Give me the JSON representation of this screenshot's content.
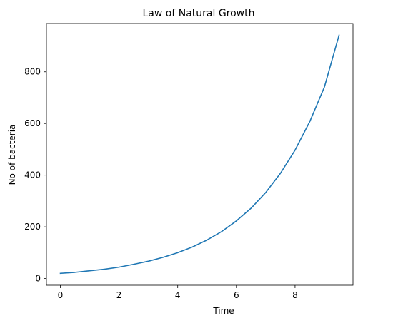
{
  "chart_data": {
    "type": "line",
    "title": "Law of Natural Growth",
    "xlabel": "Time",
    "ylabel": "No of bacteria",
    "xlim": [
      -0.475,
      9.975
    ],
    "ylim": [
      -26,
      987
    ],
    "xticks": [
      0,
      2,
      4,
      6,
      8
    ],
    "yticks": [
      0,
      200,
      400,
      600,
      800
    ],
    "grid": false,
    "legend": "none",
    "series": [
      {
        "color": "#1f77b4",
        "x": [
          0,
          0.5,
          1,
          1.5,
          2,
          2.5,
          3,
          3.5,
          4,
          4.5,
          5,
          5.5,
          6,
          6.5,
          7,
          7.5,
          8,
          8.5,
          9,
          9.5
        ],
        "y": [
          20,
          24,
          30,
          36,
          44,
          55,
          67,
          82,
          100,
          122,
          149,
          182,
          223,
          272,
          333,
          407,
          497,
          607,
          741,
          942
        ]
      }
    ]
  }
}
